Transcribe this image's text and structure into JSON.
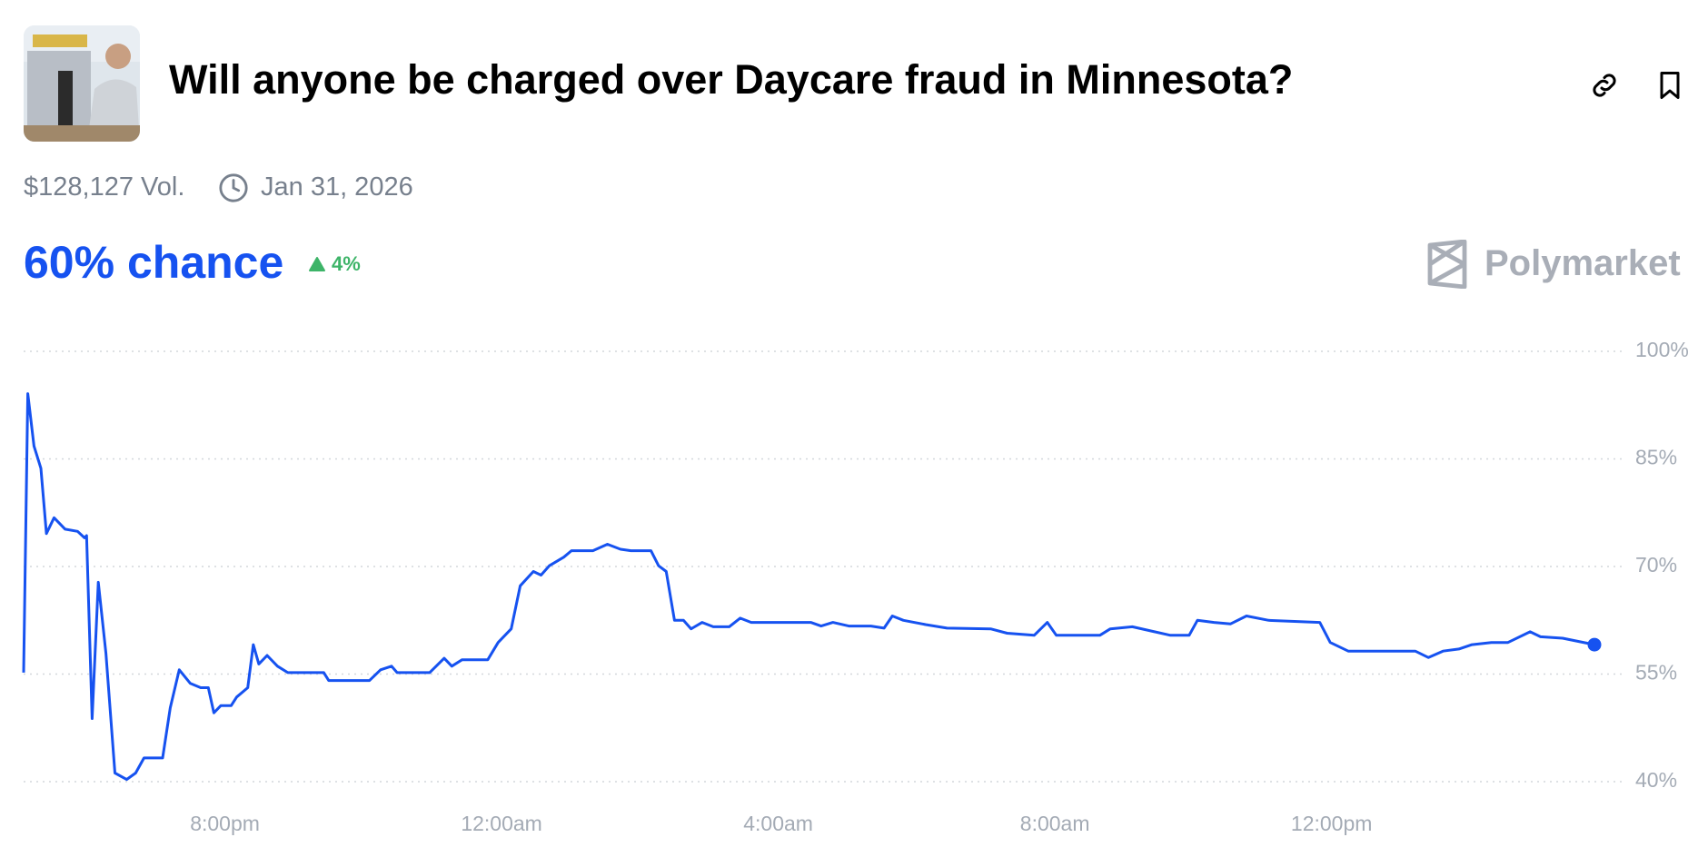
{
  "header": {
    "title": "Will anyone be charged over Daycare fraud in Minnesota?",
    "volume": "$128,127 Vol.",
    "end_date": "Jan 31, 2026"
  },
  "chance": {
    "label": "60% chance",
    "change": "4%"
  },
  "brand": "Polymarket",
  "chart_data": {
    "type": "line",
    "color": "#1652f0",
    "grid": true,
    "xlim": [
      17.09,
      39.8
    ],
    "xticks": [
      {
        "value": 20,
        "label": "8:00pm"
      },
      {
        "value": 24,
        "label": "12:00am"
      },
      {
        "value": 28,
        "label": "4:00am"
      },
      {
        "value": 32,
        "label": "8:00am"
      },
      {
        "value": 36,
        "label": "12:00pm"
      }
    ],
    "ylim": [
      40,
      100
    ],
    "yticks": [
      {
        "value": 100,
        "label": "100%"
      },
      {
        "value": 85,
        "label": "85%"
      },
      {
        "value": 70,
        "label": "70%"
      },
      {
        "value": 55,
        "label": "55%"
      },
      {
        "value": 40,
        "label": "40%"
      }
    ],
    "x": [
      17.09,
      17.15,
      17.24,
      17.34,
      17.42,
      17.53,
      17.69,
      17.87,
      17.97,
      18.0,
      18.08,
      18.17,
      18.28,
      18.41,
      18.58,
      18.71,
      18.83,
      19.1,
      19.21,
      19.34,
      19.5,
      19.65,
      19.76,
      19.84,
      19.94,
      20.09,
      20.17,
      20.33,
      20.41,
      20.49,
      20.61,
      20.76,
      20.91,
      21.15,
      21.43,
      21.5,
      22.09,
      22.25,
      22.41,
      22.49,
      22.96,
      23.17,
      23.28,
      23.43,
      23.8,
      23.95,
      24.14,
      24.27,
      24.46,
      24.57,
      24.69,
      24.9,
      25.01,
      25.32,
      25.53,
      25.72,
      25.87,
      26.16,
      26.27,
      26.38,
      26.5,
      26.63,
      26.74,
      26.9,
      27.06,
      27.29,
      27.45,
      27.61,
      28.47,
      28.62,
      28.79,
      29.02,
      29.34,
      29.53,
      29.65,
      29.81,
      30.13,
      30.44,
      31.07,
      31.31,
      31.7,
      31.89,
      32.02,
      32.65,
      32.8,
      33.12,
      33.67,
      33.94,
      34.06,
      34.3,
      34.54,
      34.77,
      35.09,
      35.83,
      35.98,
      36.24,
      36.9,
      37.21,
      37.4,
      37.61,
      37.84,
      38.03,
      38.31,
      38.55,
      38.87,
      39.02,
      39.34,
      39.8
    ],
    "values": [
      55.2,
      94.1,
      86.8,
      83.7,
      74.6,
      76.8,
      75.2,
      74.9,
      74.0,
      74.3,
      48.8,
      67.8,
      57.9,
      41.2,
      40.3,
      41.2,
      43.3,
      43.3,
      50.3,
      55.6,
      53.7,
      53.1,
      53.1,
      49.6,
      50.6,
      50.6,
      51.8,
      53.1,
      59.1,
      56.4,
      57.6,
      56.1,
      55.2,
      55.2,
      55.2,
      54.1,
      54.1,
      55.6,
      56.1,
      55.2,
      55.2,
      57.2,
      56.1,
      57.0,
      57.0,
      59.4,
      61.3,
      67.3,
      69.3,
      68.8,
      70.1,
      71.3,
      72.2,
      72.2,
      73.1,
      72.4,
      72.2,
      72.2,
      70.1,
      69.3,
      62.5,
      62.5,
      61.3,
      62.2,
      61.6,
      61.6,
      62.8,
      62.2,
      62.2,
      61.7,
      62.2,
      61.7,
      61.7,
      61.4,
      63.1,
      62.5,
      61.9,
      61.4,
      61.3,
      60.7,
      60.4,
      62.2,
      60.4,
      60.4,
      61.3,
      61.6,
      60.4,
      60.4,
      62.5,
      62.2,
      62.0,
      63.1,
      62.5,
      62.2,
      59.4,
      58.2,
      58.2,
      58.2,
      57.3,
      58.2,
      58.5,
      59.1,
      59.4,
      59.4,
      60.9,
      60.2,
      60.0,
      59.1
    ]
  }
}
